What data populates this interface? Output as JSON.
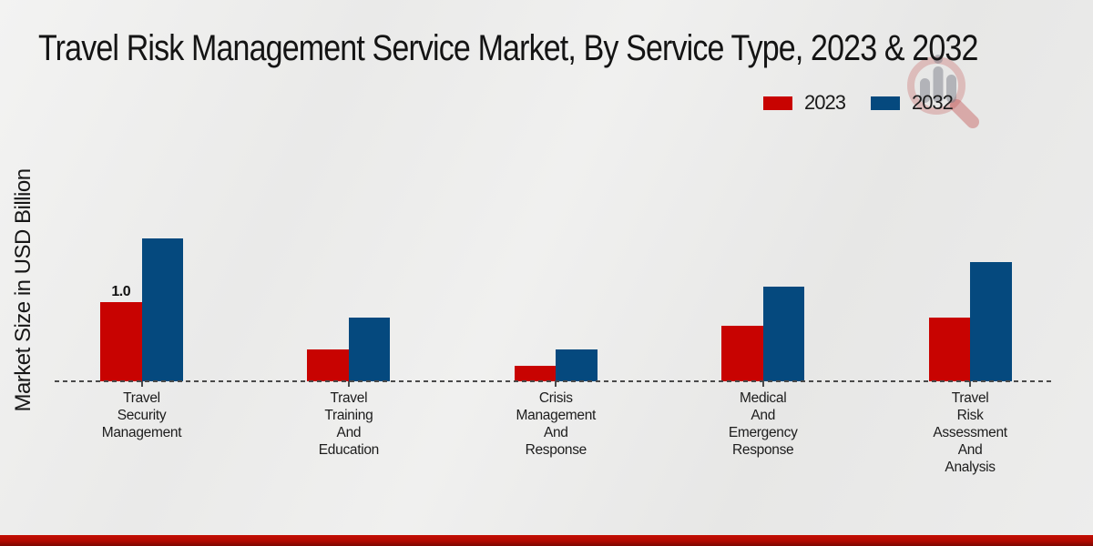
{
  "title": "Travel Risk Management Service Market, By Service Type, 2023 & 2032",
  "ylabel": "Market Size in USD Billion",
  "legend": [
    {
      "label": "2023",
      "color": "#c80301"
    },
    {
      "label": "2032",
      "color": "#05497e"
    }
  ],
  "watermark_icon": "magnifier-bar-chart-logo",
  "colors": {
    "series_2023": "#c80301",
    "series_2032": "#05497e",
    "baseline": "#4a4a4a",
    "bottom_stripe": "#b00a01",
    "background": "#ececeb"
  },
  "chart_data": {
    "type": "bar",
    "title": "Travel Risk Management Service Market, By Service Type, 2023 & 2032",
    "xlabel": "",
    "ylabel": "Market Size in USD Billion",
    "categories": [
      "Travel Security Management",
      "Travel Training And Education",
      "Crisis Management And Response",
      "Medical And Emergency Response",
      "Travel Risk Assessment And Analysis"
    ],
    "category_lines": [
      [
        "Travel",
        "Security",
        "Management"
      ],
      [
        "Travel",
        "Training",
        "And",
        "Education"
      ],
      [
        "Crisis",
        "Management",
        "And",
        "Response"
      ],
      [
        "Medical",
        "And",
        "Emergency",
        "Response"
      ],
      [
        "Travel",
        "Risk",
        "Assessment",
        "And",
        "Analysis"
      ]
    ],
    "series": [
      {
        "name": "2023",
        "color": "#c80301",
        "values": [
          1.0,
          0.4,
          0.2,
          0.7,
          0.8
        ],
        "bar_labels": [
          "1.0",
          "",
          "",
          "",
          ""
        ]
      },
      {
        "name": "2032",
        "color": "#05497e",
        "values": [
          1.8,
          0.8,
          0.4,
          1.2,
          1.5
        ],
        "bar_labels": [
          "",
          "",
          "",
          "",
          ""
        ]
      }
    ],
    "ylim": [
      0,
      2.0
    ],
    "grid": false,
    "axis_style": "dashed horizontal baseline at y=0, no y-axis ticks",
    "legend_position": "top-right"
  }
}
